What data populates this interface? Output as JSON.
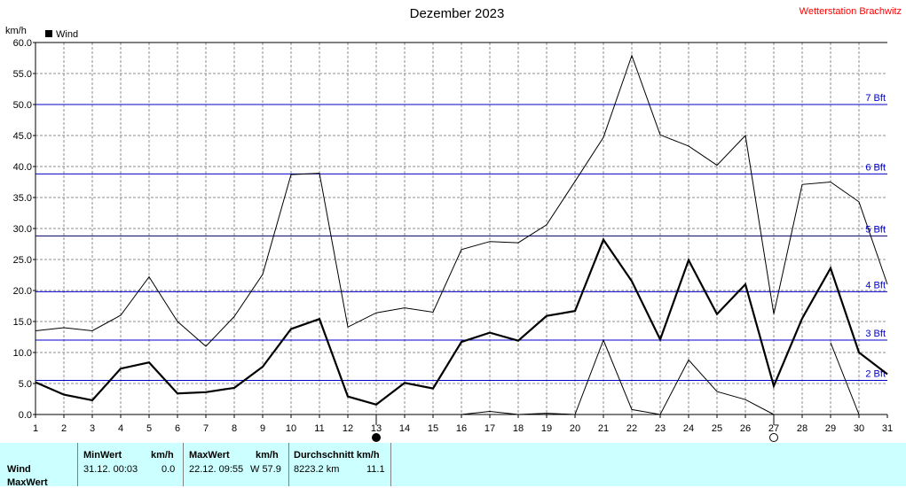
{
  "chart_data": {
    "type": "line",
    "title": "Dezember 2023",
    "station": "Wetterstation Brachwitz",
    "ylabel": "km/h",
    "ylim": [
      0,
      60
    ],
    "yticks": [
      "0.0",
      "5.0",
      "10.0",
      "15.0",
      "20.0",
      "25.0",
      "30.0",
      "35.0",
      "40.0",
      "45.0",
      "50.0",
      "55.0",
      "60.0"
    ],
    "x": [
      1,
      2,
      3,
      4,
      5,
      6,
      7,
      8,
      9,
      10,
      11,
      12,
      13,
      14,
      15,
      16,
      17,
      18,
      19,
      20,
      21,
      22,
      23,
      24,
      25,
      26,
      27,
      28,
      29,
      30,
      31
    ],
    "legend": "Wind",
    "series": [
      {
        "name": "Wind",
        "role": "mean",
        "color": "#000000",
        "values": [
          5.2,
          3.2,
          2.3,
          7.4,
          8.4,
          3.4,
          3.6,
          4.3,
          7.7,
          13.8,
          15.4,
          2.9,
          1.6,
          5.1,
          4.2,
          11.7,
          13.2,
          11.9,
          15.9,
          16.7,
          28.2,
          21.5,
          12.1,
          24.9,
          16.2,
          21.0,
          4.6,
          15.5,
          23.6,
          10.0,
          6.5
        ]
      },
      {
        "role": "max",
        "color": "#000000",
        "values": [
          13.5,
          14.0,
          13.5,
          16.0,
          22.2,
          15.0,
          11.0,
          15.8,
          22.6,
          38.7,
          38.9,
          14.1,
          16.4,
          17.2,
          16.5,
          26.6,
          27.9,
          27.7,
          30.6,
          37.6,
          44.7,
          57.9,
          45.1,
          43.3,
          40.2,
          45.0,
          16.2,
          37.1,
          37.5,
          34.3,
          21.0
        ]
      },
      {
        "role": "min",
        "color": "#000000",
        "values": [
          null,
          null,
          null,
          null,
          null,
          null,
          null,
          null,
          null,
          null,
          null,
          null,
          null,
          null,
          null,
          0.0,
          0.5,
          0.0,
          0.2,
          0.0,
          12.0,
          0.8,
          0.0,
          8.8,
          3.7,
          2.4,
          0.0,
          null,
          11.6,
          0.0,
          null
        ]
      }
    ],
    "beaufort": [
      {
        "label": "2 Bft",
        "value": 5.5,
        "color": "#0000cc"
      },
      {
        "label": "3 Bft",
        "value": 12.0,
        "color": "#0000cc"
      },
      {
        "label": "4 Bft",
        "value": 19.8,
        "color": "#0000cc"
      },
      {
        "label": "5 Bft",
        "value": 28.8,
        "color": "#000066"
      },
      {
        "label": "6 Bft",
        "value": 38.8,
        "color": "#0000cc"
      },
      {
        "label": "7 Bft",
        "value": 50.0,
        "color": "#0000cc"
      }
    ],
    "moon": [
      {
        "day": 13,
        "phase": "full"
      },
      {
        "day": 27,
        "phase": "new"
      }
    ],
    "grid": true
  },
  "stats": {
    "row1": "Wind",
    "row2": "MaxWert",
    "min_header": "MinWert",
    "min_unit": "km/h",
    "min_time": "31.12.  00:03",
    "min_value": "0.0",
    "max_header": "MaxWert",
    "max_unit": "km/h",
    "max_time": "22.12.  09:55",
    "max_value": "W 57.9",
    "avg_header": "Durchschnitt km/h",
    "avg_distance": "8223.2 km",
    "avg_value": "11.1"
  }
}
